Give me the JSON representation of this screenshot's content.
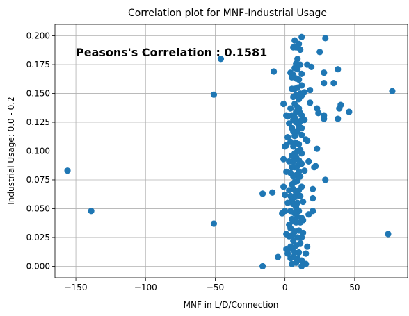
{
  "chart_data": {
    "type": "scatter",
    "title": "Correlation plot for MNF-Industrial Usage",
    "xlabel": "MNF in L/D/Connection",
    "ylabel": "Industrial Usage: 0.0 - 0.2",
    "xlim": [
      -165,
      88
    ],
    "ylim": [
      -0.01,
      0.21
    ],
    "grid": true,
    "marker_color": "#1f77b4",
    "x_ticks": [
      -150,
      -100,
      -50,
      0,
      50
    ],
    "x_tick_labels": [
      "−150",
      "−100",
      "−50",
      "0",
      "50"
    ],
    "y_ticks": [
      0.0,
      0.025,
      0.05,
      0.075,
      0.1,
      0.125,
      0.15,
      0.175,
      0.2
    ],
    "y_tick_labels": [
      "0.000",
      "0.025",
      "0.050",
      "0.075",
      "0.100",
      "0.125",
      "0.150",
      "0.175",
      "0.200"
    ],
    "annotation": "Peasons's Correlation : 0.1581",
    "points": [
      [
        -156,
        0.083
      ],
      [
        -139,
        0.048
      ],
      [
        -51,
        0.149
      ],
      [
        -51,
        0.037
      ],
      [
        -46,
        0.18
      ],
      [
        77,
        0.152
      ],
      [
        74,
        0.028
      ],
      [
        46,
        0.134
      ],
      [
        40,
        0.14
      ],
      [
        39,
        0.137
      ],
      [
        38,
        0.171
      ],
      [
        38,
        0.128
      ],
      [
        35,
        0.159
      ],
      [
        29,
        0.198
      ],
      [
        28,
        0.159
      ],
      [
        28,
        0.168
      ],
      [
        28,
        0.128
      ],
      [
        28,
        0.131
      ],
      [
        29,
        0.075
      ],
      [
        25,
        0.186
      ],
      [
        24,
        0.133
      ],
      [
        23,
        0.137
      ],
      [
        23,
        0.102
      ],
      [
        22,
        0.087
      ],
      [
        21,
        0.086
      ],
      [
        20,
        0.067
      ],
      [
        20,
        0.059
      ],
      [
        20,
        0.048
      ],
      [
        19,
        0.173
      ],
      [
        18,
        0.153
      ],
      [
        18,
        0.142
      ],
      [
        17,
        0.091
      ],
      [
        17,
        0.045
      ],
      [
        16,
        0.175
      ],
      [
        16,
        0.109
      ],
      [
        15,
        0.11
      ],
      [
        16,
        0.017
      ],
      [
        15,
        0.011
      ],
      [
        15,
        0.002
      ],
      [
        14,
        0.151
      ],
      [
        14,
        0.127
      ],
      [
        14,
        0.083
      ],
      [
        13,
        0.056
      ],
      [
        13,
        0.04
      ],
      [
        13,
        0.029
      ],
      [
        12,
        0.199
      ],
      [
        12,
        0.167
      ],
      [
        12,
        0.157
      ],
      [
        12,
        0.148
      ],
      [
        12,
        0.131
      ],
      [
        12,
        0.12
      ],
      [
        12,
        0.114
      ],
      [
        12,
        0.098
      ],
      [
        12,
        0.089
      ],
      [
        12,
        0.069
      ],
      [
        12,
        0.042
      ],
      [
        12,
        0.025
      ],
      [
        12,
        0.005
      ],
      [
        12,
        0.0
      ],
      [
        11,
        0.188
      ],
      [
        11,
        0.175
      ],
      [
        11,
        0.15
      ],
      [
        11,
        0.133
      ],
      [
        11,
        0.126
      ],
      [
        11,
        0.101
      ],
      [
        11,
        0.078
      ],
      [
        11,
        0.061
      ],
      [
        11,
        0.038
      ],
      [
        11,
        0.02
      ],
      [
        10,
        0.193
      ],
      [
        10,
        0.162
      ],
      [
        10,
        0.145
      ],
      [
        10,
        0.137
      ],
      [
        10,
        0.122
      ],
      [
        10,
        0.106
      ],
      [
        10,
        0.092
      ],
      [
        10,
        0.082
      ],
      [
        10,
        0.066
      ],
      [
        10,
        0.048
      ],
      [
        10,
        0.031
      ],
      [
        10,
        0.012
      ],
      [
        9,
        0.18
      ],
      [
        9,
        0.171
      ],
      [
        9,
        0.155
      ],
      [
        9,
        0.138
      ],
      [
        9,
        0.117
      ],
      [
        9,
        0.1
      ],
      [
        9,
        0.087
      ],
      [
        9,
        0.074
      ],
      [
        9,
        0.055
      ],
      [
        9,
        0.043
      ],
      [
        9,
        0.025
      ],
      [
        9,
        0.007
      ],
      [
        8,
        0.19
      ],
      [
        8,
        0.176
      ],
      [
        8,
        0.163
      ],
      [
        8,
        0.149
      ],
      [
        8,
        0.134
      ],
      [
        8,
        0.125
      ],
      [
        8,
        0.107
      ],
      [
        8,
        0.095
      ],
      [
        8,
        0.079
      ],
      [
        8,
        0.064
      ],
      [
        8,
        0.051
      ],
      [
        8,
        0.038
      ],
      [
        8,
        0.018
      ],
      [
        8,
        0.003
      ],
      [
        7,
        0.196
      ],
      [
        7,
        0.172
      ],
      [
        7,
        0.154
      ],
      [
        7,
        0.141
      ],
      [
        7,
        0.129
      ],
      [
        7,
        0.113
      ],
      [
        7,
        0.098
      ],
      [
        7,
        0.086
      ],
      [
        7,
        0.073
      ],
      [
        7,
        0.06
      ],
      [
        7,
        0.046
      ],
      [
        7,
        0.03
      ],
      [
        7,
        0.012
      ],
      [
        6,
        0.19
      ],
      [
        6,
        0.166
      ],
      [
        6,
        0.147
      ],
      [
        6,
        0.127
      ],
      [
        6,
        0.117
      ],
      [
        6,
        0.104
      ],
      [
        6,
        0.091
      ],
      [
        6,
        0.078
      ],
      [
        6,
        0.067
      ],
      [
        6,
        0.054
      ],
      [
        6,
        0.039
      ],
      [
        6,
        0.022
      ],
      [
        6,
        0.008
      ],
      [
        5,
        0.164
      ],
      [
        5,
        0.154
      ],
      [
        5,
        0.131
      ],
      [
        5,
        0.12
      ],
      [
        5,
        0.096
      ],
      [
        5,
        0.086
      ],
      [
        5,
        0.071
      ],
      [
        5,
        0.057
      ],
      [
        5,
        0.041
      ],
      [
        5,
        0.027
      ],
      [
        5,
        0.015
      ],
      [
        5,
        0.002
      ],
      [
        4,
        0.168
      ],
      [
        4,
        0.137
      ],
      [
        4,
        0.108
      ],
      [
        4,
        0.081
      ],
      [
        4,
        0.061
      ],
      [
        4,
        0.048
      ],
      [
        4,
        0.033
      ],
      [
        4,
        0.017
      ],
      [
        4,
        0.007
      ],
      [
        3,
        0.124
      ],
      [
        3,
        0.091
      ],
      [
        3,
        0.066
      ],
      [
        3,
        0.036
      ],
      [
        3,
        0.026
      ],
      [
        2,
        0.13
      ],
      [
        2,
        0.112
      ],
      [
        2,
        0.055
      ],
      [
        2,
        0.011
      ],
      [
        1,
        0.131
      ],
      [
        1,
        0.105
      ],
      [
        1,
        0.082
      ],
      [
        1,
        0.028
      ],
      [
        1,
        0.015
      ],
      [
        0,
        0.104
      ],
      [
        0,
        0.062
      ],
      [
        0,
        0.048
      ],
      [
        -1,
        0.141
      ],
      [
        -1,
        0.093
      ],
      [
        -1,
        0.069
      ],
      [
        -2,
        0.046
      ],
      [
        -5,
        0.008
      ],
      [
        -8,
        0.169
      ],
      [
        -9,
        0.064
      ],
      [
        -16,
        0.063
      ],
      [
        -16,
        0.0
      ]
    ]
  }
}
